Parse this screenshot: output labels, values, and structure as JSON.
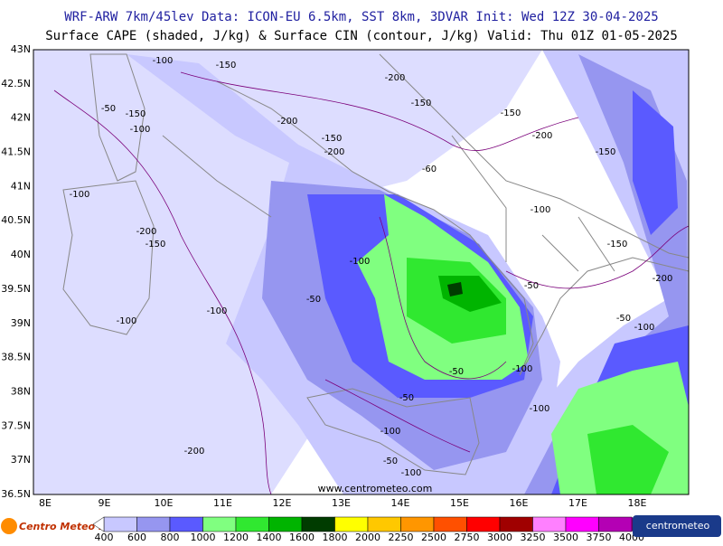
{
  "header": {
    "line1": "WRF-ARW 7km/45lev   Data: ICON-EU 6.5km, SST 8km, 3DVAR   Init: Wed 12Z 30-04-2025",
    "line2": "Surface CAPE (shaded, J/kg) & Surface CIN (contour, J/kg)  Valid: Thu 01Z 01-05-2025"
  },
  "lat_labels": [
    "43N",
    "42.5N",
    "42N",
    "41.5N",
    "41N",
    "40.5N",
    "40N",
    "39.5N",
    "39N",
    "38.5N",
    "38N",
    "37.5N",
    "37N",
    "36.5N"
  ],
  "lon_labels": [
    "8E",
    "9E",
    "10E",
    "11E",
    "12E",
    "13E",
    "14E",
    "15E",
    "16E",
    "17E",
    "18E"
  ],
  "contour_labels": [
    "-100",
    "-150",
    "-200",
    "-50",
    "-150",
    "-100",
    "-150",
    "-200",
    "-150",
    "-200",
    "-150",
    "-200",
    "-150",
    "-100",
    "-200",
    "-150",
    "-100",
    "-50",
    "-100",
    "-100",
    "-50",
    "-50",
    "-100",
    "-200",
    "-150",
    "-50",
    "-100",
    "-50",
    "-100",
    "-100",
    "-200",
    "-50",
    "-100",
    "-60",
    "-100"
  ],
  "watermark": "www.centrometeo.com",
  "logo_left": "Centro Meteo Italiano",
  "logo_right": "centrometeo",
  "colorbar": {
    "labels": [
      400,
      600,
      800,
      1000,
      1200,
      1400,
      1600,
      1800,
      2000,
      2250,
      2500,
      2750,
      3000,
      3250,
      3500,
      3750,
      4000
    ],
    "colors": [
      "#c8c8ff",
      "#9696f0",
      "#5a5aff",
      "#80ff80",
      "#30e830",
      "#00b400",
      "#003c00",
      "#ffff00",
      "#ffc800",
      "#ff9600",
      "#ff5000",
      "#ff0000",
      "#a00000",
      "#ff80ff",
      "#ff00ff",
      "#b400b4"
    ]
  }
}
